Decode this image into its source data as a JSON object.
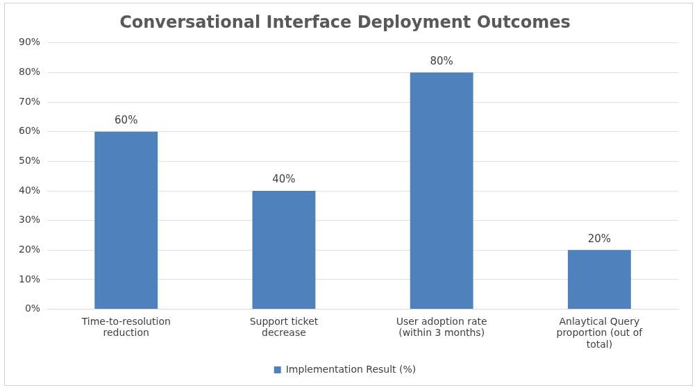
{
  "chart_data": {
    "type": "bar",
    "title": "Conversational Interface Deployment Outcomes",
    "categories": [
      "Time-to-resolution reduction",
      "Support ticket decrease",
      "User adoption rate (within 3 months)",
      "Anlaytical Query proportion (out of total)"
    ],
    "series": [
      {
        "name": "Implementation Result (%)",
        "color": "#4f81bd",
        "values": [
          60,
          40,
          80,
          20
        ],
        "value_labels": [
          "60%",
          "40%",
          "80%",
          "20%"
        ]
      }
    ],
    "ylim": [
      0,
      90
    ],
    "yticks": [
      {
        "value": 0,
        "label": "0%"
      },
      {
        "value": 10,
        "label": "10%"
      },
      {
        "value": 20,
        "label": "20%"
      },
      {
        "value": 30,
        "label": "30%"
      },
      {
        "value": 40,
        "label": "40%"
      },
      {
        "value": 50,
        "label": "50%"
      },
      {
        "value": 60,
        "label": "60%"
      },
      {
        "value": 70,
        "label": "70%"
      },
      {
        "value": 80,
        "label": "80%"
      },
      {
        "value": 90,
        "label": "90%"
      }
    ],
    "grid": "y",
    "legend": "bottom"
  }
}
